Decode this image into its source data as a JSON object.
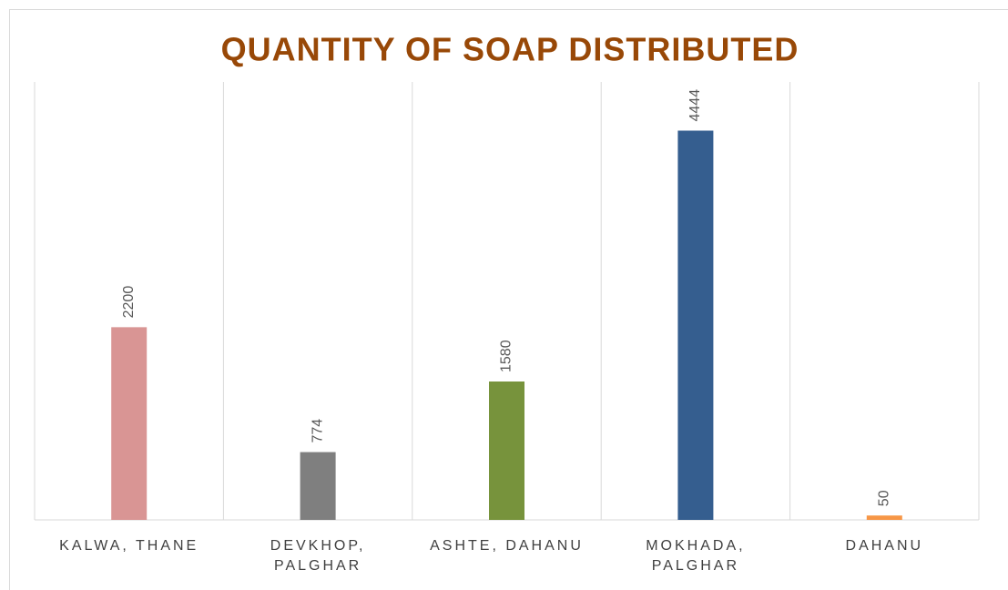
{
  "chart_data": {
    "type": "bar",
    "title": "QUANTITY OF SOAP DISTRIBUTED",
    "categories": [
      "KALWA, THANE",
      "DEVKHOP, PALGHAR",
      "ASHTE, DAHANU",
      "MOKHADA, PALGHAR",
      "DAHANU"
    ],
    "values": [
      2200,
      774,
      1580,
      4444,
      50
    ],
    "colors": [
      "#d99594",
      "#7f7f7f",
      "#77933c",
      "#355e8f",
      "#f79646"
    ],
    "ylim": [
      0,
      5000
    ],
    "grid": true
  }
}
